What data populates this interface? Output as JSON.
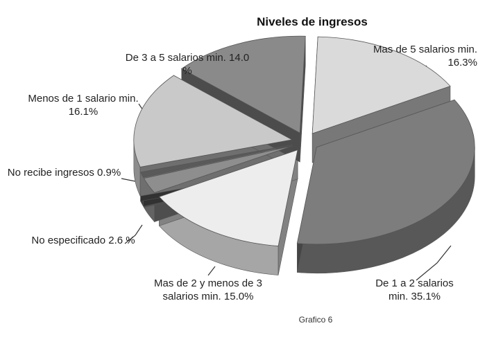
{
  "chart_data": {
    "type": "pie",
    "title": "Niveles de ingresos",
    "caption": "Grafico 6",
    "categories": [
      "Mas de 5 salarios min.",
      "De 1 a 2 salarios min.",
      "Mas de 2 y menos de 3 salarios min.",
      "No especificado",
      "No recibe ingresos",
      "Menos de 1 salario min.",
      "De 3 a 5 salarios min."
    ],
    "values": [
      16.3,
      35.1,
      15.0,
      2.6,
      0.9,
      16.1,
      14.0
    ],
    "value_labels": [
      "16.3%",
      "35.1%",
      "15.0%",
      "2.6 %",
      "0.9%",
      "16.1%",
      "14.0 %"
    ],
    "colors": [
      "#dadada",
      "#7d7d7d",
      "#ededed",
      "#8e8e8e",
      "#5a5a5a",
      "#c9c9c9",
      "#8a8a8a"
    ]
  }
}
